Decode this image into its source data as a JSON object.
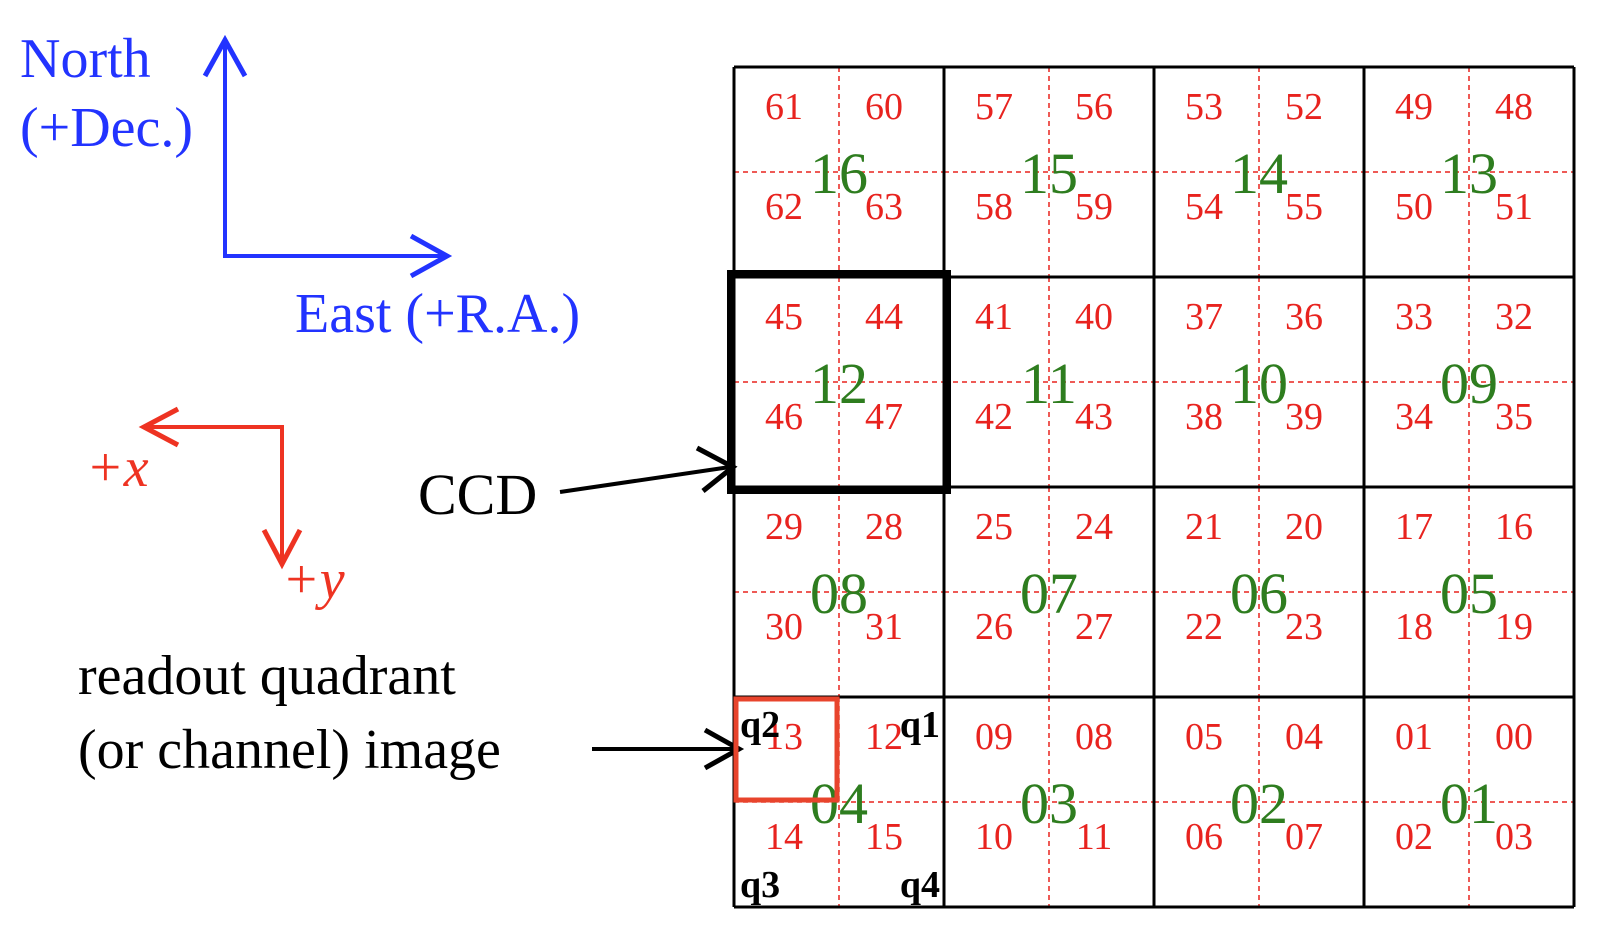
{
  "colors": {
    "sky_axes": "#2233ff",
    "pixel_axes": "#ee3322",
    "quadrant_text": "#e8231f",
    "ccd_text": "#2e7d1f",
    "grid": "#000000",
    "quadrant_divider": "#e8231f",
    "highlight_quadrant": "#e8442c",
    "arrow": "#000000"
  },
  "sky_axes": {
    "north_label": "North",
    "dec_label": "(+Dec.)",
    "east_label": "East (+R.A.)"
  },
  "pixel_axes": {
    "x_label": "+x",
    "y_label": "+y"
  },
  "callouts": {
    "ccd_label": "CCD",
    "quadrant_label_line1": "readout quadrant",
    "quadrant_label_line2": "(or channel) image"
  },
  "grid": {
    "rows": [
      [
        {
          "ccd": "16",
          "quads": [
            "61",
            "60",
            "62",
            "63"
          ]
        },
        {
          "ccd": "15",
          "quads": [
            "57",
            "56",
            "58",
            "59"
          ]
        },
        {
          "ccd": "14",
          "quads": [
            "53",
            "52",
            "54",
            "55"
          ]
        },
        {
          "ccd": "13",
          "quads": [
            "49",
            "48",
            "50",
            "51"
          ]
        }
      ],
      [
        {
          "ccd": "12",
          "quads": [
            "45",
            "44",
            "46",
            "47"
          ]
        },
        {
          "ccd": "11",
          "quads": [
            "41",
            "40",
            "42",
            "43"
          ]
        },
        {
          "ccd": "10",
          "quads": [
            "37",
            "36",
            "38",
            "39"
          ]
        },
        {
          "ccd": "09",
          "quads": [
            "33",
            "32",
            "34",
            "35"
          ]
        }
      ],
      [
        {
          "ccd": "08",
          "quads": [
            "29",
            "28",
            "30",
            "31"
          ]
        },
        {
          "ccd": "07",
          "quads": [
            "25",
            "24",
            "26",
            "27"
          ]
        },
        {
          "ccd": "06",
          "quads": [
            "21",
            "20",
            "22",
            "23"
          ]
        },
        {
          "ccd": "05",
          "quads": [
            "17",
            "16",
            "18",
            "19"
          ]
        }
      ],
      [
        {
          "ccd": "04",
          "quads": [
            "13",
            "12",
            "14",
            "15"
          ]
        },
        {
          "ccd": "03",
          "quads": [
            "09",
            "08",
            "10",
            "11"
          ]
        },
        {
          "ccd": "02",
          "quads": [
            "05",
            "04",
            "06",
            "07"
          ]
        },
        {
          "ccd": "01",
          "quads": [
            "01",
            "00",
            "02",
            "03"
          ]
        }
      ]
    ],
    "quadrant_ids": [
      "q2",
      "q1",
      "q3",
      "q4"
    ]
  }
}
